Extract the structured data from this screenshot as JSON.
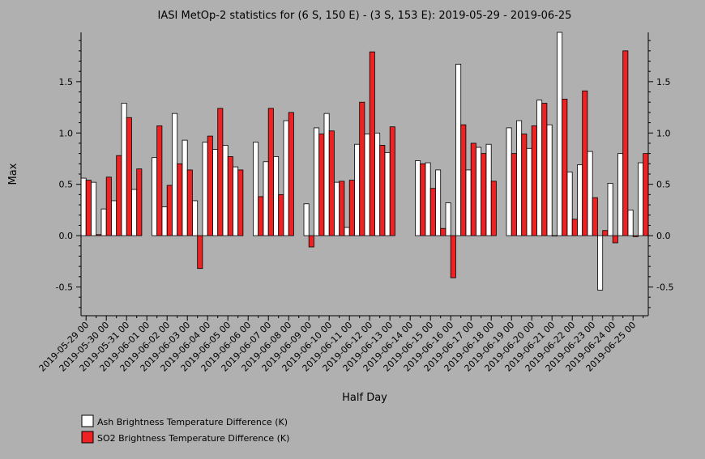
{
  "chart_data": {
    "type": "bar",
    "title": "IASI MetOp-2 statistics for (6 S, 150 E) - (3 S, 153 E): 2019-05-29 - 2019-06-25",
    "xlabel": "Half Day",
    "ylabel": "Max",
    "ylim": [
      -0.78,
      1.98
    ],
    "yticks": [
      -0.5,
      0.0,
      0.5,
      1.0,
      1.5
    ],
    "ytick_labels": [
      "-0.5",
      "0.0",
      "0.5",
      "1.0",
      "1.5"
    ],
    "xtick_labels": [
      "2019-05-29 00",
      "2019-05-30 00",
      "2019-05-31 00",
      "2019-06-01 00",
      "2019-06-02 00",
      "2019-06-03 00",
      "2019-06-04 00",
      "2019-06-05 00",
      "2019-06-06 00",
      "2019-06-07 00",
      "2019-06-08 00",
      "2019-06-09 00",
      "2019-06-10 00",
      "2019-06-11 00",
      "2019-06-12 00",
      "2019-06-13 00",
      "2019-06-14 00",
      "2019-06-15 00",
      "2019-06-16 00",
      "2019-06-17 00",
      "2019-06-18 00",
      "2019-06-19 00",
      "2019-06-20 00",
      "2019-06-21 00",
      "2019-06-22 00",
      "2019-06-23 00",
      "2019-06-24 00",
      "2019-06-25 00"
    ],
    "categories": [
      "2019-05-29 00",
      "2019-05-29 12",
      "2019-05-30 00",
      "2019-05-30 12",
      "2019-05-31 00",
      "2019-05-31 12",
      "2019-06-01 00",
      "2019-06-01 12",
      "2019-06-02 00",
      "2019-06-02 12",
      "2019-06-03 00",
      "2019-06-03 12",
      "2019-06-04 00",
      "2019-06-04 12",
      "2019-06-05 00",
      "2019-06-05 12",
      "2019-06-06 00",
      "2019-06-06 12",
      "2019-06-07 00",
      "2019-06-07 12",
      "2019-06-08 00",
      "2019-06-08 12",
      "2019-06-09 00",
      "2019-06-09 12",
      "2019-06-10 00",
      "2019-06-10 12",
      "2019-06-11 00",
      "2019-06-11 12",
      "2019-06-12 00",
      "2019-06-12 12",
      "2019-06-13 00",
      "2019-06-13 12",
      "2019-06-14 00",
      "2019-06-14 12",
      "2019-06-15 00",
      "2019-06-15 12",
      "2019-06-16 00",
      "2019-06-16 12",
      "2019-06-17 00",
      "2019-06-17 12",
      "2019-06-18 00",
      "2019-06-18 12",
      "2019-06-19 00",
      "2019-06-19 12",
      "2019-06-20 00",
      "2019-06-20 12",
      "2019-06-21 00",
      "2019-06-21 12",
      "2019-06-22 00",
      "2019-06-22 12",
      "2019-06-23 00",
      "2019-06-23 12",
      "2019-06-24 00",
      "2019-06-24 12",
      "2019-06-25 00",
      "2019-06-25 12"
    ],
    "series": [
      {
        "name": "Ash Brightness Temperature Difference (K)",
        "color": "#ffffff",
        "values": [
          0.56,
          0.52,
          0.26,
          0.34,
          1.29,
          0.45,
          null,
          0.76,
          0.28,
          1.19,
          0.93,
          0.34,
          0.91,
          0.84,
          0.88,
          0.67,
          null,
          0.91,
          0.72,
          0.77,
          1.12,
          null,
          0.31,
          1.05,
          1.19,
          0.52,
          0.08,
          0.89,
          0.99,
          1.0,
          0.81,
          null,
          null,
          0.73,
          0.71,
          0.64,
          0.32,
          1.67,
          0.64,
          0.86,
          0.89,
          null,
          1.05,
          1.12,
          0.85,
          1.32,
          1.08,
          1.98,
          0.62,
          0.69,
          0.82,
          -0.53,
          0.51,
          0.8,
          0.25,
          0.71
        ]
      },
      {
        "name": "SO2 Brightness Temperature Difference (K)",
        "color": "#ee2222",
        "values": [
          0.54,
          0.01,
          0.57,
          0.78,
          1.15,
          0.65,
          null,
          1.07,
          0.49,
          0.7,
          0.64,
          -0.32,
          0.97,
          1.24,
          0.77,
          0.64,
          null,
          0.38,
          1.24,
          0.4,
          1.2,
          null,
          -0.11,
          0.99,
          1.02,
          0.53,
          0.54,
          1.3,
          1.79,
          0.88,
          1.06,
          null,
          null,
          0.7,
          0.46,
          0.07,
          -0.41,
          1.08,
          0.9,
          0.8,
          0.53,
          null,
          0.8,
          0.99,
          1.07,
          1.29,
          0.0,
          1.33,
          0.16,
          1.41,
          0.37,
          0.05,
          -0.07,
          1.8,
          -0.01,
          0.8
        ]
      }
    ],
    "legend_position": "bottom-left",
    "grid": false
  }
}
